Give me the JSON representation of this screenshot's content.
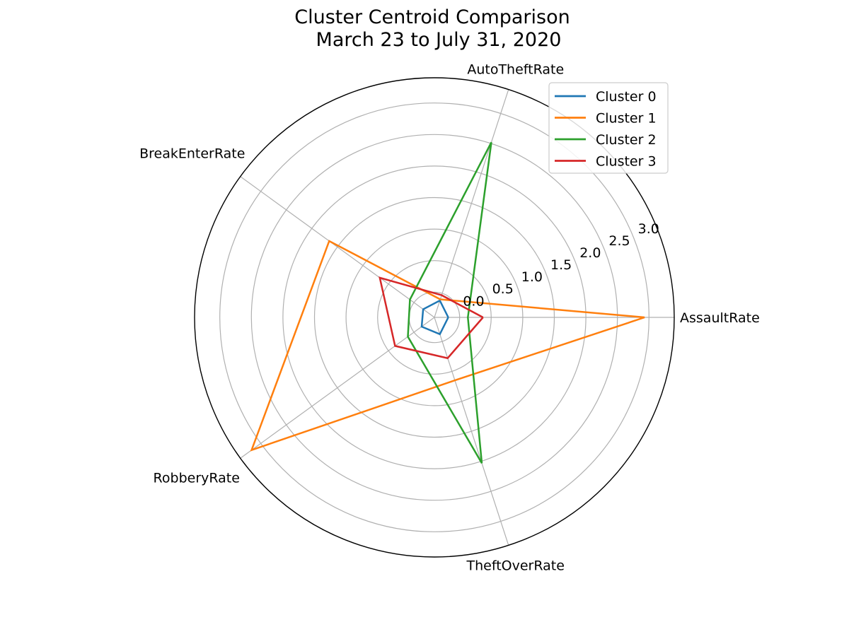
{
  "chart_data": {
    "type": "radar",
    "title": "Cluster Centroid Comparison",
    "subtitle": "March 23 to July 31, 2020",
    "axes": [
      "AssaultRate",
      "AutoTheftRate",
      "BreakEnterRate",
      "RobberyRate",
      "TheftOverRate"
    ],
    "rlim": [
      -0.4,
      3.4
    ],
    "rticks": [
      0.0,
      0.5,
      1.0,
      1.5,
      2.0,
      2.5,
      3.0
    ],
    "rtick_labels": [
      "0.0",
      "0.5",
      "1.0",
      "1.5",
      "2.0",
      "2.5",
      "3.0"
    ],
    "grid": true,
    "legend": "top-right",
    "series": [
      {
        "name": "Cluster 0",
        "color": "#1f77b4",
        "values": [
          -0.18,
          -0.12,
          -0.18,
          -0.15,
          -0.12
        ]
      },
      {
        "name": "Cluster 1",
        "color": "#ff7f0e",
        "values": [
          2.93,
          -0.1,
          1.66,
          3.18,
          0.65
        ]
      },
      {
        "name": "Cluster 2",
        "color": "#2ca02c",
        "values": [
          0.13,
          2.52,
          0.08,
          0.12,
          2.03
        ]
      },
      {
        "name": "Cluster 3",
        "color": "#d62728",
        "values": [
          0.37,
          -0.03,
          0.67,
          0.37,
          0.28
        ]
      }
    ]
  }
}
